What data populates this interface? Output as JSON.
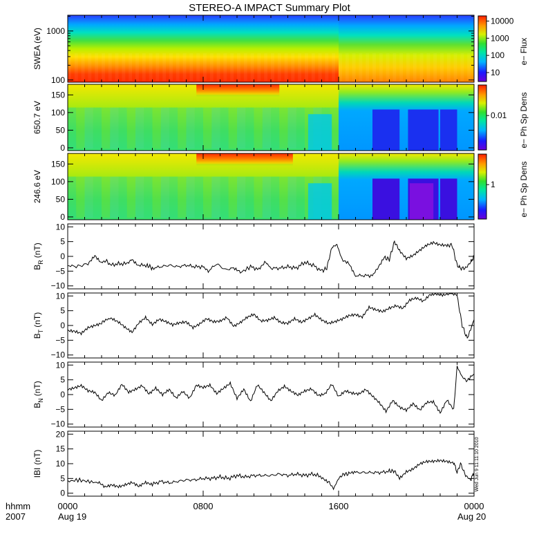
{
  "title": "STEREO-A IMPACT Summary Plot",
  "footer": {
    "row1_label": "hhmm",
    "row2_label": "2007",
    "time_ticks": [
      "0000",
      "0800",
      "1600",
      "0000"
    ],
    "date_left": "Aug 19",
    "date_right": "Aug 20"
  },
  "stamp": "Wed Jun 9 11:11:10 2010",
  "colors": {
    "spectrogram_scale": "rainbow (violet→blue→cyan→green→yellow→orange→red)",
    "trace": "#000000"
  },
  "chart_data": [
    {
      "type": "heatmap",
      "name": "swea-spectrogram",
      "ylabel": "SWEA (eV)",
      "ylim": [
        90,
        2100
      ],
      "yscale": "log",
      "yticks": [
        100,
        1000
      ],
      "ytick_labels": [
        "100",
        "1000"
      ],
      "x_range_hours": [
        0,
        24
      ],
      "colorbar": {
        "label": "e− Flux",
        "scale": "log",
        "ticks": [
          10,
          100,
          1000,
          10000
        ],
        "tick_labels": [
          "10",
          "100",
          "1000",
          "10000"
        ]
      },
      "description_levels": {
        "low_energy_before_1600": "high (red)",
        "low_energy_after_1600": "moderate (orange/yellow)",
        "high_energy": "low (blue)"
      }
    },
    {
      "type": "heatmap",
      "name": "pitch-angle-650",
      "ylabel": "650.7 eV",
      "ylim": [
        -8,
        180
      ],
      "yticks": [
        0,
        50,
        100,
        150
      ],
      "ytick_labels": [
        "0",
        "50",
        "100",
        "150"
      ],
      "x_range_hours": [
        0,
        24
      ],
      "colorbar": {
        "label": "e− Ph Sp Dens",
        "ticks": [
          0.01
        ],
        "tick_labels": [
          "0.01"
        ]
      }
    },
    {
      "type": "heatmap",
      "name": "pitch-angle-246",
      "ylabel": "246.6 eV",
      "ylim": [
        -8,
        180
      ],
      "yticks": [
        0,
        50,
        100,
        150
      ],
      "ytick_labels": [
        "0",
        "50",
        "100",
        "150"
      ],
      "x_range_hours": [
        0,
        24
      ],
      "colorbar": {
        "label": "e− Ph Sp Dens",
        "ticks": [
          1
        ],
        "tick_labels": [
          "1"
        ]
      }
    },
    {
      "type": "line",
      "name": "b-r",
      "ylabel": "BR (nT)",
      "ylabel_main": "B",
      "ylabel_sub": "R",
      "ylabel_unit": "(nT)",
      "ylim": [
        -11,
        11
      ],
      "yticks": [
        -10,
        -5,
        0,
        5,
        10
      ],
      "ytick_labels": [
        "−10",
        "−5",
        "0",
        "5",
        "10"
      ],
      "x_hours": [
        0,
        0.5,
        1.2,
        1.6,
        2.0,
        2.3,
        2.5,
        3.0,
        3.5,
        3.8,
        4.2,
        4.7,
        5.0,
        5.5,
        6.0,
        6.5,
        7.0,
        7.5,
        8.0,
        8.3,
        8.8,
        9.3,
        9.8,
        10.2,
        10.8,
        11.3,
        11.7,
        12.0,
        12.5,
        13.0,
        13.5,
        14.0,
        14.5,
        15.0,
        15.3,
        15.6,
        15.9,
        16.2,
        16.6,
        17.0,
        17.5,
        18.0,
        18.3,
        18.7,
        19.0,
        19.3,
        19.6,
        20.0,
        20.4,
        20.8,
        21.2,
        21.6,
        22.0,
        22.4,
        22.7,
        23.0,
        23.2,
        23.5,
        23.8,
        24.0
      ],
      "values": [
        -3,
        -3.5,
        -2.5,
        0.5,
        -2,
        -1.5,
        -3,
        -2.5,
        -2.5,
        -1,
        -3,
        -3,
        -4,
        -3.5,
        -3,
        -3.5,
        -3,
        -3.5,
        -3.5,
        -5,
        -2.5,
        -4.5,
        -4,
        -5.5,
        -3.5,
        -4.5,
        -2,
        -4,
        -4,
        -3.5,
        -4,
        -2,
        -3,
        -5,
        -4,
        3,
        4,
        -1,
        -2,
        -6.5,
        -6.5,
        -6.5,
        -4,
        -0.5,
        -1,
        5,
        2,
        -1,
        0,
        2,
        4,
        5,
        4,
        3.5,
        4,
        -3,
        -4,
        -4,
        -2,
        0
      ]
    },
    {
      "type": "line",
      "name": "b-t",
      "ylabel": "BT (nT)",
      "ylabel_main": "B",
      "ylabel_sub": "T",
      "ylabel_unit": "(nT)",
      "ylim": [
        -11,
        11
      ],
      "yticks": [
        -10,
        -5,
        0,
        5,
        10
      ],
      "ytick_labels": [
        "−10",
        "−5",
        "0",
        "5",
        "10"
      ],
      "x_hours": [
        0,
        0.4,
        0.8,
        1.2,
        1.6,
        2.0,
        2.3,
        2.6,
        3.0,
        3.4,
        3.8,
        4.2,
        4.6,
        5.0,
        5.4,
        5.8,
        6.2,
        6.6,
        7.0,
        7.4,
        7.8,
        8.2,
        8.6,
        9.0,
        9.4,
        9.8,
        10.2,
        10.6,
        11.0,
        11.4,
        11.8,
        12.2,
        12.6,
        13.0,
        13.4,
        13.8,
        14.2,
        14.6,
        15.0,
        15.4,
        15.8,
        16.2,
        16.6,
        17.0,
        17.4,
        17.8,
        18.2,
        18.6,
        19.0,
        19.4,
        19.8,
        20.2,
        20.6,
        21.0,
        21.4,
        21.8,
        22.2,
        22.6,
        23.0,
        23.3,
        23.6,
        24.0
      ],
      "values": [
        -1.5,
        -2,
        -3,
        -1,
        0,
        1,
        2,
        2.5,
        1,
        -1,
        -2.5,
        1,
        3,
        0.5,
        2,
        1,
        0,
        1,
        1.5,
        -0.5,
        0.5,
        2,
        1,
        1.5,
        3,
        0,
        1,
        2.5,
        3.5,
        1.5,
        2,
        3,
        1,
        0.5,
        2,
        1,
        2.5,
        4,
        2,
        0.5,
        1,
        2,
        3.5,
        4,
        3,
        6,
        5,
        4.5,
        6,
        7,
        6,
        8.5,
        9,
        8,
        10.5,
        11,
        10.5,
        11,
        10,
        0,
        -4.5,
        2
      ]
    },
    {
      "type": "line",
      "name": "b-n",
      "ylabel": "BN (nT)",
      "ylabel_main": "B",
      "ylabel_sub": "N",
      "ylabel_unit": "(nT)",
      "ylim": [
        -11,
        11
      ],
      "yticks": [
        -10,
        -5,
        0,
        5,
        10
      ],
      "ytick_labels": [
        "−10",
        "−5",
        "0",
        "5",
        "10"
      ],
      "x_hours": [
        0,
        0.4,
        0.8,
        1.2,
        1.6,
        2.0,
        2.4,
        2.8,
        3.2,
        3.6,
        4.0,
        4.4,
        4.8,
        5.2,
        5.6,
        6.0,
        6.4,
        6.8,
        7.2,
        7.6,
        8.0,
        8.4,
        8.8,
        9.2,
        9.6,
        10.0,
        10.4,
        10.8,
        11.2,
        11.6,
        12.0,
        12.4,
        12.8,
        13.2,
        13.6,
        14.0,
        14.4,
        14.8,
        15.2,
        15.6,
        16.0,
        16.4,
        16.8,
        17.2,
        17.6,
        18.0,
        18.4,
        18.8,
        19.2,
        19.6,
        20.0,
        20.4,
        20.8,
        21.2,
        21.6,
        22.0,
        22.4,
        22.8,
        23.0,
        23.3,
        23.6,
        24.0
      ],
      "values": [
        2,
        2.5,
        3,
        1,
        0.5,
        -2,
        1,
        0,
        3.5,
        0.5,
        1.5,
        3,
        0.5,
        2.5,
        0,
        1.5,
        -1.5,
        1,
        -1,
        3.5,
        2.5,
        3,
        0,
        2,
        4,
        -1,
        2,
        -2.5,
        3,
        0.5,
        -2,
        1.5,
        3,
        1,
        -0.5,
        1,
        2,
        0,
        0.5,
        3.5,
        -1,
        1,
        0.5,
        0.5,
        2,
        -0.5,
        -3,
        -6,
        -2,
        -4,
        -5,
        -3,
        -5.5,
        -3,
        -2.5,
        -6,
        -1.5,
        -5,
        9.5,
        6,
        4.5,
        7
      ]
    },
    {
      "type": "line",
      "name": "b-magnitude",
      "ylabel": "|B| (nT)",
      "ylabel_main": "IBI",
      "ylabel_sub": "",
      "ylabel_unit": "(nT)",
      "ylim": [
        -1,
        21
      ],
      "yticks": [
        0,
        5,
        10,
        15,
        20
      ],
      "ytick_labels": [
        "0",
        "5",
        "10",
        "15",
        "20"
      ],
      "x_hours": [
        0,
        0.6,
        1.2,
        1.8,
        2.2,
        2.6,
        3.0,
        3.4,
        3.8,
        4.2,
        4.6,
        5.0,
        5.5,
        6.0,
        6.5,
        7.0,
        7.5,
        8.0,
        8.5,
        9.0,
        9.5,
        10.0,
        10.5,
        11.0,
        11.5,
        12.0,
        12.5,
        13.0,
        13.5,
        14.0,
        14.5,
        15.0,
        15.4,
        15.7,
        16.0,
        16.3,
        16.6,
        17.0,
        17.5,
        18.0,
        18.5,
        19.0,
        19.3,
        19.6,
        20.0,
        20.4,
        20.8,
        21.2,
        21.6,
        22.0,
        22.4,
        22.8,
        23.0,
        23.2,
        23.5,
        23.8,
        24.0
      ],
      "values": [
        4,
        4.5,
        4,
        3.5,
        2,
        3,
        2.5,
        3,
        3.5,
        2,
        3.5,
        3,
        4,
        3.5,
        4,
        4.5,
        4.5,
        5,
        5,
        5.5,
        5,
        6,
        5.5,
        6,
        6,
        6,
        6.5,
        6,
        6.5,
        6,
        6.5,
        5.5,
        4,
        1.5,
        5,
        6.5,
        6.5,
        7,
        7,
        7,
        7,
        7.5,
        7.5,
        5,
        7.5,
        8.5,
        10,
        10.5,
        10.5,
        11,
        11,
        10.5,
        7,
        10,
        6,
        4.5,
        7
      ]
    }
  ]
}
